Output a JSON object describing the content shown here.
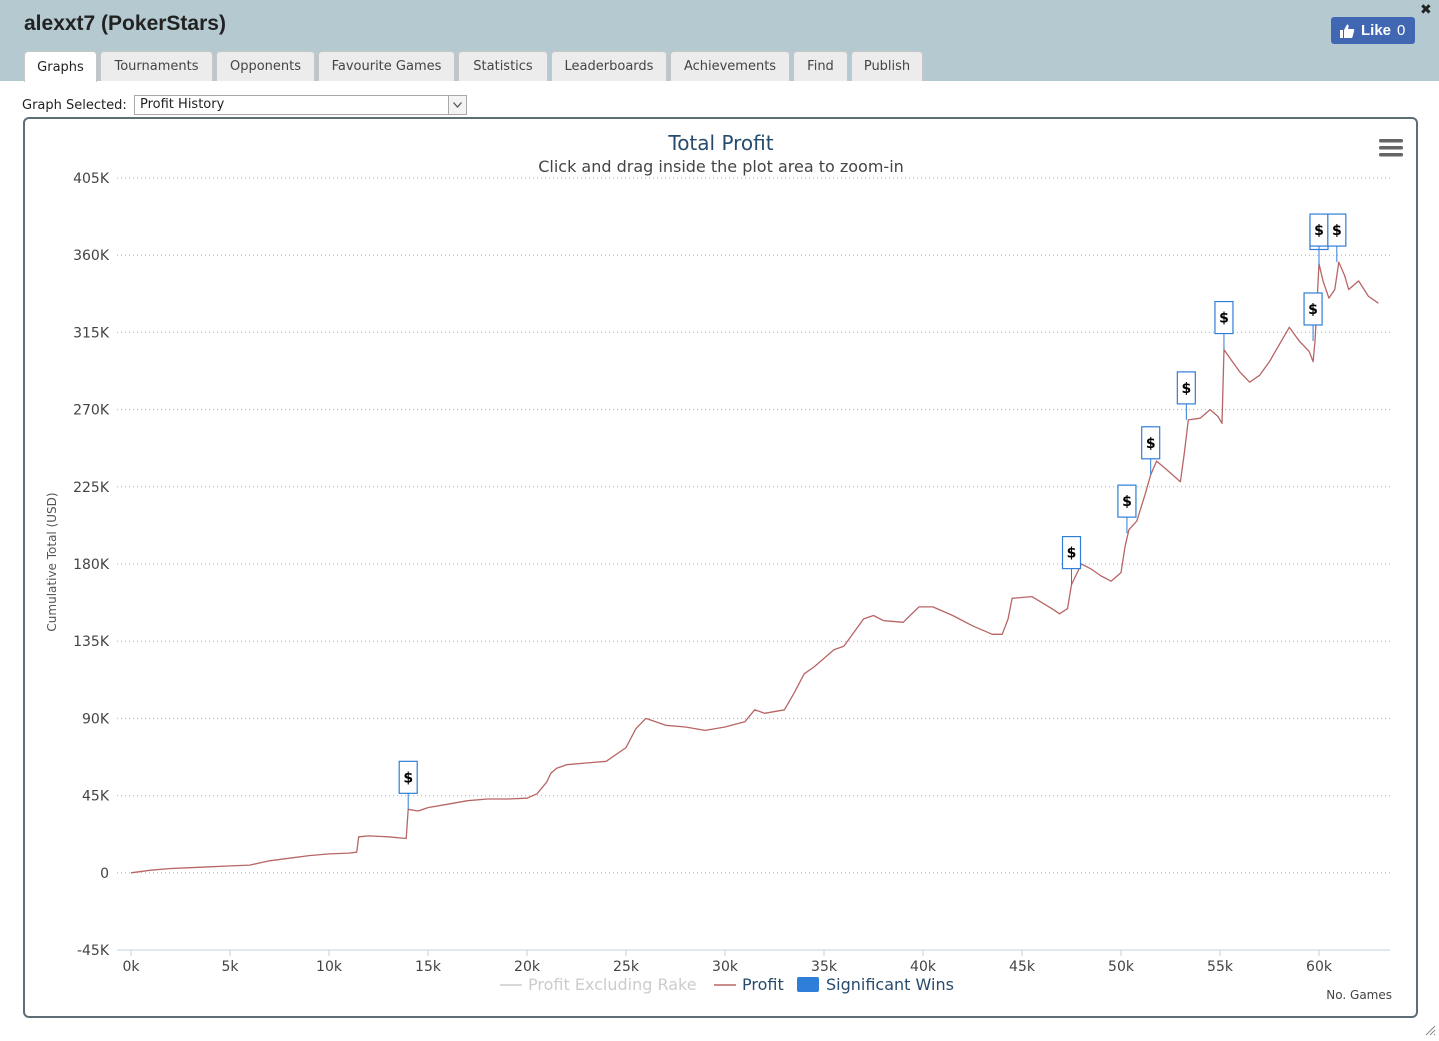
{
  "window": {
    "title": "alexxt7 (PokerStars)",
    "close_label": "✖"
  },
  "like_button": {
    "label": "Like",
    "count": "0"
  },
  "tabs": [
    {
      "label": "Graphs",
      "active": true
    },
    {
      "label": "Tournaments"
    },
    {
      "label": "Opponents"
    },
    {
      "label": "Favourite Games"
    },
    {
      "label": "Statistics"
    },
    {
      "label": "Leaderboards"
    },
    {
      "label": "Achievements"
    },
    {
      "label": "Find"
    },
    {
      "label": "Publish"
    }
  ],
  "graph_select": {
    "label": "Graph Selected:",
    "value": "Profit History"
  },
  "colors": {
    "profit": "#b86565",
    "excluding_rake": "#cccccc",
    "significant": "#2f7ed8",
    "title": "#274b6d"
  },
  "chart_data": {
    "type": "line",
    "title": "Total Profit",
    "subtitle": "Click and drag inside the plot area to zoom-in",
    "xlabel": "No. Games",
    "ylabel": "Cumulative Total (USD)",
    "xlim": [
      0,
      63000
    ],
    "ylim": [
      -45000,
      405000
    ],
    "x_ticks": [
      0,
      5000,
      10000,
      15000,
      20000,
      25000,
      30000,
      35000,
      40000,
      45000,
      50000,
      55000,
      60000
    ],
    "x_tick_labels": [
      "0k",
      "5k",
      "10k",
      "15k",
      "20k",
      "25k",
      "30k",
      "35k",
      "40k",
      "45k",
      "50k",
      "55k",
      "60k"
    ],
    "y_ticks": [
      -45000,
      0,
      45000,
      90000,
      135000,
      180000,
      225000,
      270000,
      315000,
      360000,
      405000
    ],
    "y_tick_labels": [
      "-45K",
      "0",
      "45K",
      "90K",
      "135K",
      "180K",
      "225K",
      "270K",
      "315K",
      "360K",
      "405K"
    ],
    "grid": true,
    "legend": {
      "position": "bottom",
      "items": [
        {
          "name": "Profit Excluding Rake",
          "symbol": "line",
          "visible": false
        },
        {
          "name": "Profit",
          "symbol": "line",
          "visible": true
        },
        {
          "name": "Significant Wins",
          "symbol": "flag",
          "visible": true
        }
      ]
    },
    "series": [
      {
        "name": "Profit",
        "x": [
          0,
          1000,
          2000,
          3000,
          4000,
          5000,
          6000,
          7000,
          8000,
          9000,
          10000,
          11000,
          11400,
          11500,
          12000,
          13000,
          13900,
          14000,
          14500,
          15000,
          16000,
          17000,
          18000,
          19000,
          20000,
          20500,
          21000,
          21200,
          21500,
          22000,
          23000,
          24000,
          25000,
          25500,
          26000,
          26500,
          27000,
          28000,
          29000,
          30000,
          31000,
          31500,
          32000,
          33000,
          33500,
          34000,
          34500,
          35000,
          35500,
          36000,
          36500,
          37000,
          37500,
          38000,
          39000,
          39800,
          40500,
          41500,
          42500,
          43500,
          44000,
          44300,
          44500,
          45500,
          46500,
          46900,
          47300,
          47500,
          48000,
          48500,
          49000,
          49500,
          50000,
          50200,
          50400,
          50800,
          51200,
          51500,
          51800,
          52200,
          53000,
          53200,
          53400,
          54000,
          54500,
          54900,
          55100,
          55200,
          55500,
          56000,
          56500,
          57000,
          57500,
          58000,
          58500,
          59000,
          59500,
          59700,
          59800,
          60000,
          60200,
          60500,
          60800,
          61000,
          61300,
          61500,
          62000,
          62500,
          63000
        ],
        "y": [
          0,
          1500,
          2500,
          3000,
          3500,
          4000,
          4500,
          7000,
          8500,
          10000,
          11000,
          11500,
          12000,
          21000,
          21500,
          21000,
          20000,
          37000,
          36000,
          38000,
          40000,
          42000,
          43000,
          43000,
          43500,
          46000,
          53000,
          58000,
          61000,
          63000,
          64000,
          65000,
          73000,
          84000,
          90000,
          88000,
          86000,
          85000,
          83000,
          85000,
          88000,
          95000,
          93000,
          95000,
          105000,
          116000,
          120000,
          125000,
          130000,
          132000,
          140000,
          148000,
          150000,
          147000,
          146000,
          155000,
          155000,
          150000,
          144000,
          139000,
          139000,
          148000,
          160000,
          161000,
          154000,
          151000,
          154000,
          168000,
          180000,
          177000,
          173000,
          170000,
          175000,
          190000,
          200000,
          205000,
          220000,
          232000,
          240000,
          236000,
          228000,
          245000,
          264000,
          265000,
          270000,
          266000,
          262000,
          305000,
          300000,
          292000,
          286000,
          290000,
          298000,
          308000,
          318000,
          310000,
          304000,
          298000,
          310000,
          355000,
          345000,
          335000,
          340000,
          356000,
          348000,
          340000,
          345000,
          336000,
          332000
        ]
      }
    ],
    "significant_wins": [
      {
        "x": 14000,
        "y": 37000,
        "label": "$"
      },
      {
        "x": 47500,
        "y": 168000,
        "label": "$"
      },
      {
        "x": 50300,
        "y": 198000,
        "label": "$"
      },
      {
        "x": 51500,
        "y": 232000,
        "label": "$"
      },
      {
        "x": 53300,
        "y": 264000,
        "label": "$"
      },
      {
        "x": 55200,
        "y": 305000,
        "label": "$"
      },
      {
        "x": 59700,
        "y": 310000,
        "label": "$"
      },
      {
        "x": 60000,
        "y": 354000,
        "label": "$"
      },
      {
        "x": 60000,
        "y": 356000,
        "label": "$"
      },
      {
        "x": 60900,
        "y": 356000,
        "label": "$"
      }
    ]
  }
}
